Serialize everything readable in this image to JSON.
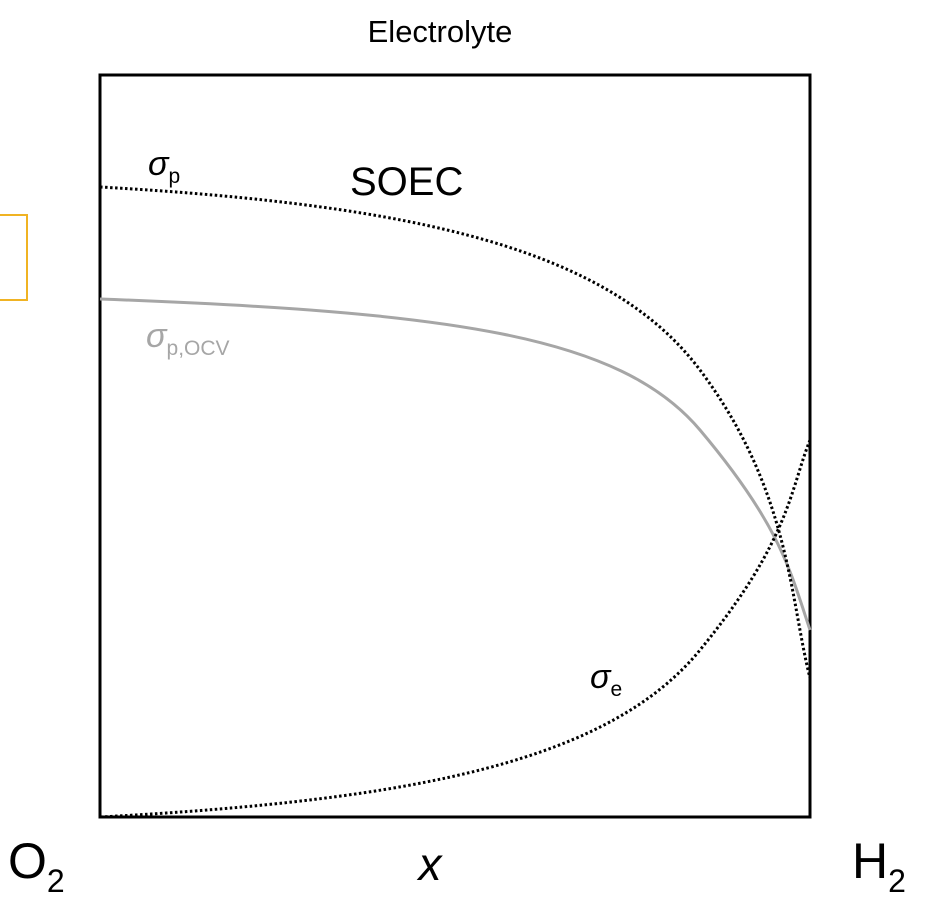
{
  "header": {
    "title": "Electrolyte"
  },
  "label": "SOEC",
  "curves": [
    {
      "symbol": "σ",
      "subscript": "p"
    },
    {
      "symbol": "σ",
      "subscript": "p,OCV"
    },
    {
      "symbol": "σ",
      "subscript": "e"
    }
  ],
  "axis": {
    "left": {
      "base": "O",
      "subscript": "2"
    },
    "label": "x",
    "right": {
      "base": "H",
      "subscript": "2"
    }
  }
}
